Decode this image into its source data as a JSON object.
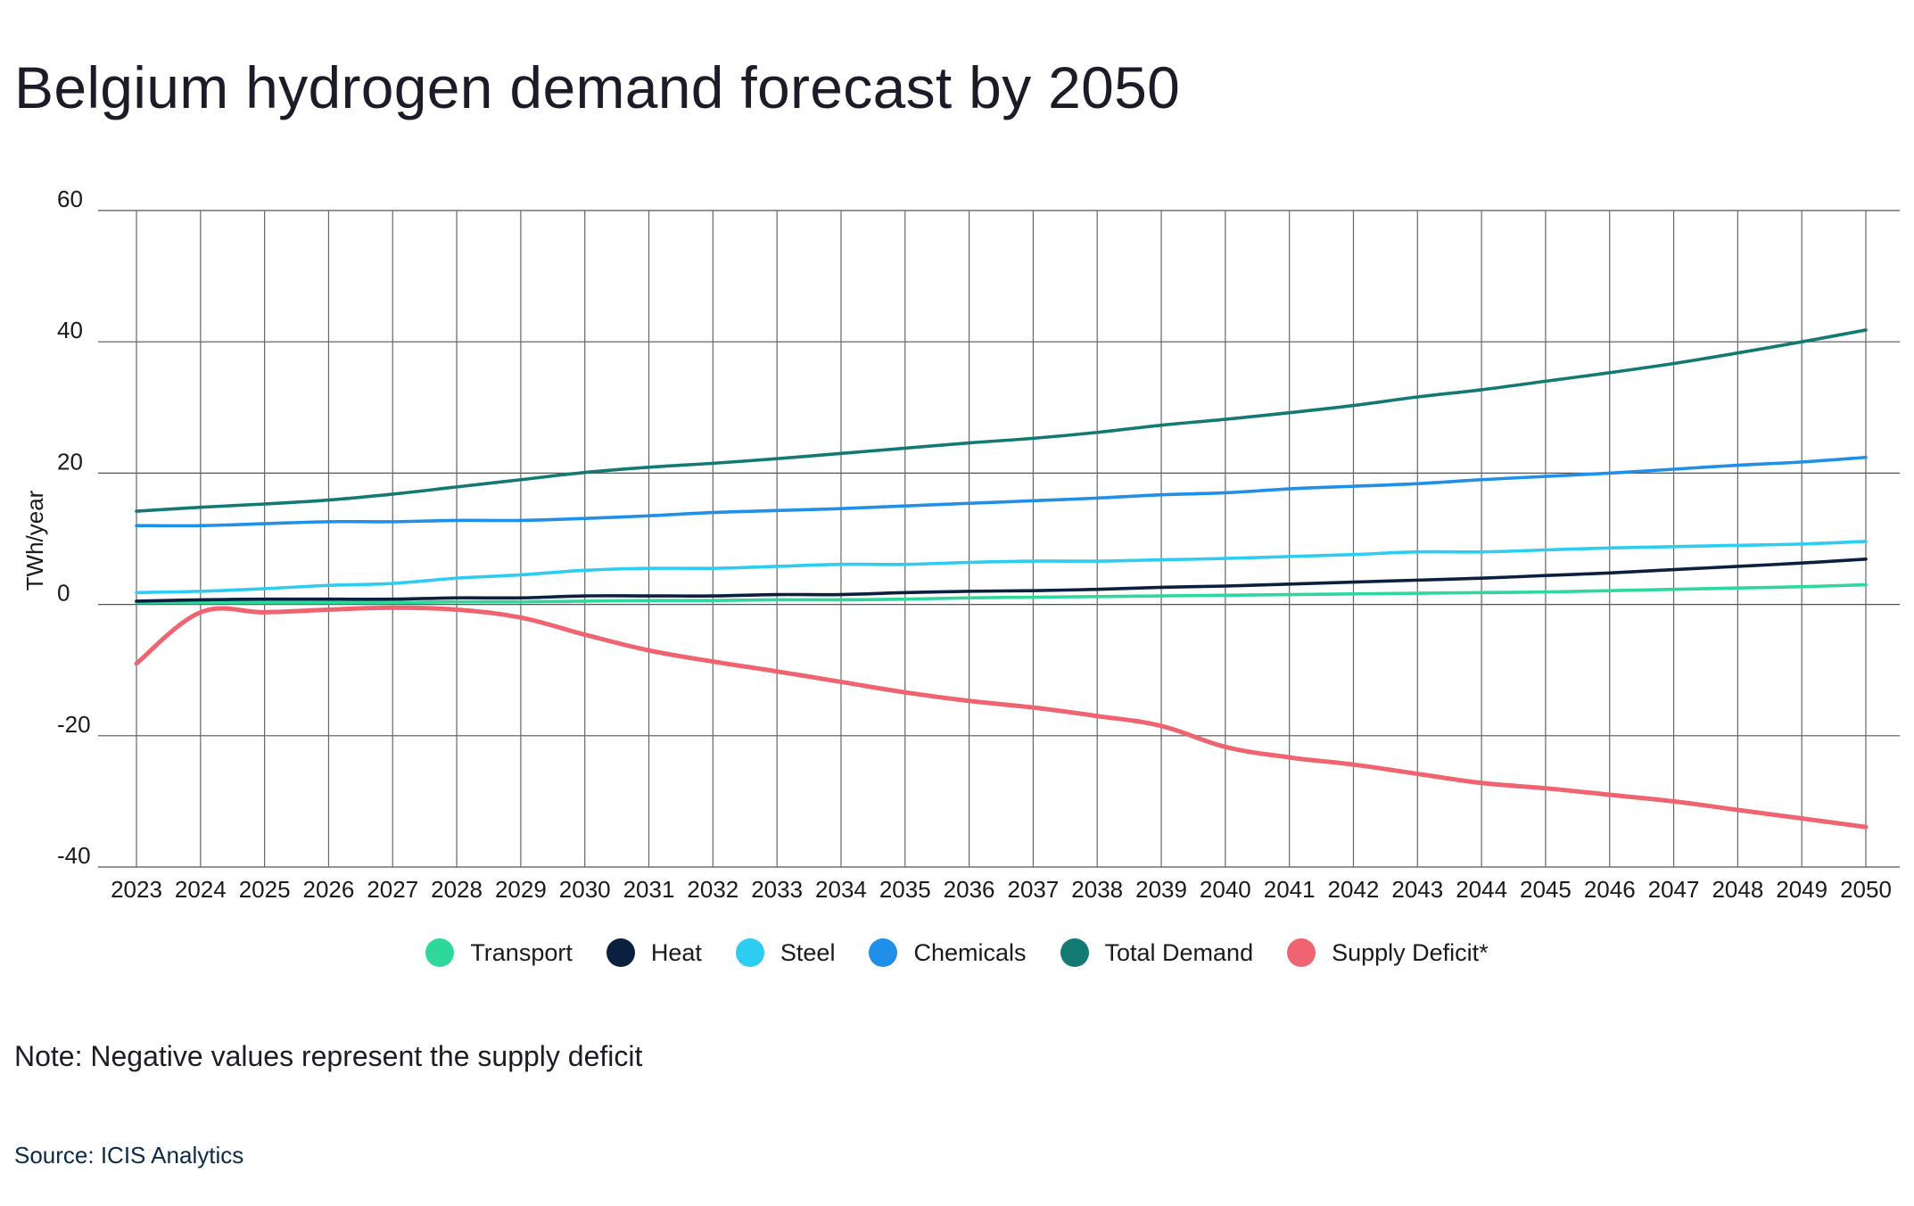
{
  "title": "Belgium hydrogen demand forecast by 2050",
  "note": "Note: Negative values represent the supply deficit",
  "source": "Source: ICIS Analytics",
  "chart_data": {
    "type": "line",
    "title": "Belgium hydrogen demand forecast by 2050",
    "xlabel": "",
    "ylabel": "TWh/year",
    "ylim": [
      -40,
      60
    ],
    "yticks": [
      60,
      40,
      20,
      0,
      -20,
      -40
    ],
    "grid": true,
    "legend": "bottom-center",
    "x": [
      "2023",
      "2024",
      "2025",
      "2026",
      "2027",
      "2028",
      "2029",
      "2030",
      "2031",
      "2032",
      "2033",
      "2034",
      "2035",
      "2036",
      "2037",
      "2038",
      "2039",
      "2040",
      "2041",
      "2042",
      "2043",
      "2044",
      "2045",
      "2046",
      "2047",
      "2048",
      "2049",
      "2050"
    ],
    "series": [
      {
        "name": "Transport",
        "color": "#2ed89a",
        "values": [
          0.3,
          0.3,
          0.3,
          0.3,
          0.3,
          0.4,
          0.4,
          0.5,
          0.6,
          0.6,
          0.7,
          0.7,
          0.8,
          1.0,
          1.1,
          1.2,
          1.3,
          1.4,
          1.5,
          1.6,
          1.7,
          1.8,
          1.9,
          2.1,
          2.3,
          2.5,
          2.7,
          3.0
        ]
      },
      {
        "name": "Heat",
        "color": "#0b1f3f",
        "values": [
          0.5,
          0.7,
          0.8,
          0.8,
          0.8,
          1.0,
          1.0,
          1.3,
          1.3,
          1.3,
          1.5,
          1.5,
          1.8,
          2.0,
          2.1,
          2.3,
          2.6,
          2.8,
          3.1,
          3.4,
          3.7,
          4.0,
          4.4,
          4.8,
          5.3,
          5.8,
          6.3,
          6.9
        ]
      },
      {
        "name": "Steel",
        "color": "#2ccdf0",
        "values": [
          1.8,
          2.0,
          2.4,
          2.9,
          3.2,
          4.0,
          4.5,
          5.2,
          5.5,
          5.5,
          5.8,
          6.1,
          6.1,
          6.4,
          6.6,
          6.6,
          6.8,
          7.0,
          7.3,
          7.6,
          8.0,
          8.0,
          8.3,
          8.6,
          8.8,
          9.0,
          9.2,
          9.6
        ]
      },
      {
        "name": "Chemicals",
        "color": "#1f8fe8",
        "values": [
          12.0,
          12.0,
          12.3,
          12.6,
          12.6,
          12.8,
          12.8,
          13.1,
          13.5,
          14.0,
          14.3,
          14.6,
          15.0,
          15.4,
          15.8,
          16.2,
          16.7,
          17.0,
          17.6,
          18.0,
          18.4,
          19.0,
          19.5,
          20.0,
          20.6,
          21.2,
          21.7,
          22.4
        ]
      },
      {
        "name": "Total Demand",
        "color": "#127a72",
        "values": [
          14.2,
          14.8,
          15.3,
          15.9,
          16.8,
          17.9,
          19.0,
          20.1,
          20.9,
          21.5,
          22.2,
          23.0,
          23.8,
          24.6,
          25.3,
          26.2,
          27.3,
          28.2,
          29.2,
          30.3,
          31.6,
          32.7,
          34.0,
          35.3,
          36.7,
          38.3,
          40.0,
          41.8
        ]
      },
      {
        "name": "Supply Deficit*",
        "color": "#ef6470",
        "values": [
          -9.0,
          -1.2,
          -1.2,
          -0.8,
          -0.5,
          -0.8,
          -2.0,
          -4.6,
          -7.0,
          -8.7,
          -10.2,
          -11.8,
          -13.4,
          -14.7,
          -15.7,
          -17.0,
          -18.5,
          -21.7,
          -23.3,
          -24.4,
          -25.8,
          -27.2,
          -28.0,
          -29.0,
          -30.0,
          -31.3,
          -32.6,
          -33.9
        ]
      }
    ]
  }
}
